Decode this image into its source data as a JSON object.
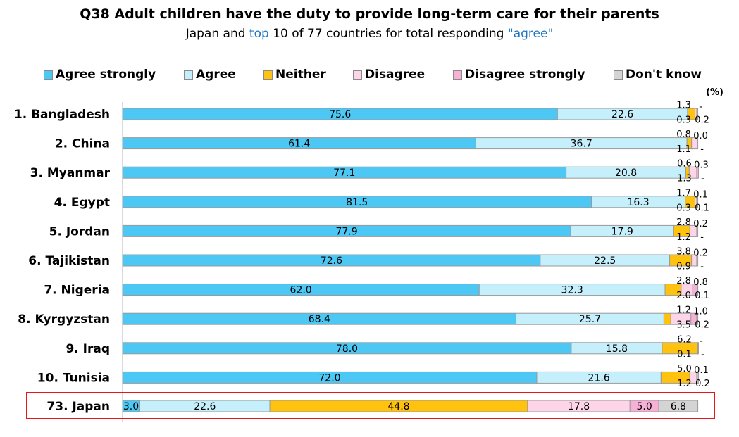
{
  "title": "Q38 Adult children have the duty to provide long-term care for their parents",
  "subtitle": {
    "prefix": "Japan and ",
    "highlight1": "top",
    "middle": " 10 of 77 countries for total responding ",
    "highlight2": "\"agree\""
  },
  "unit_label": "(%)",
  "colors": {
    "agree_strongly": "#4dc8f5",
    "agree": "#c6effc",
    "neither": "#ffc20e",
    "disagree": "#fcd5e8",
    "disagree_strongly": "#f7b0d6",
    "dont_know": "#d4d4d4",
    "highlight_box": "#e8151b",
    "bar_border": "#9a9a9a"
  },
  "chart_data": {
    "type": "bar",
    "orientation": "horizontal",
    "stacked": true,
    "xlim": [
      0,
      100
    ],
    "legend_position": "top",
    "categories": [
      "1. Bangladesh",
      "2. China",
      "3. Myanmar",
      "4. Egypt",
      "5. Jordan",
      "6. Tajikistan",
      "7. Nigeria",
      "8. Kyrgyzstan",
      "9. Iraq",
      "10. Tunisia",
      "73. Japan"
    ],
    "series": [
      {
        "name": "Agree strongly",
        "values": [
          75.6,
          61.4,
          77.1,
          81.5,
          77.9,
          72.6,
          62.0,
          68.4,
          78.0,
          72.0,
          3.0
        ],
        "labels": [
          "75.6",
          "61.4",
          "77.1",
          "81.5",
          "77.9",
          "72.6",
          "62.0",
          "68.4",
          "78.0",
          "72.0",
          "3.0"
        ]
      },
      {
        "name": "Agree",
        "values": [
          22.6,
          36.7,
          20.8,
          16.3,
          17.9,
          22.5,
          32.3,
          25.7,
          15.8,
          21.6,
          22.6
        ],
        "labels": [
          "22.6",
          "36.7",
          "20.8",
          "16.3",
          "17.9",
          "22.5",
          "32.3",
          "25.7",
          "15.8",
          "21.6",
          "22.6"
        ]
      },
      {
        "name": "Neither",
        "values": [
          1.3,
          0.8,
          0.6,
          1.7,
          2.8,
          3.8,
          2.8,
          1.2,
          6.2,
          5.0,
          44.8
        ],
        "labels": [
          "1.3",
          "0.8",
          "0.6",
          "1.7",
          "2.8",
          "3.8",
          "2.8",
          "1.2",
          "6.2",
          "5.0",
          "44.8"
        ]
      },
      {
        "name": "Disagree",
        "values": [
          0.3,
          1.1,
          1.3,
          0.3,
          1.2,
          0.9,
          2.0,
          3.5,
          0.1,
          1.2,
          17.8
        ],
        "labels": [
          "0.3",
          "1.1",
          "1.3",
          "0.3",
          "1.2",
          "0.9",
          "2.0",
          "3.5",
          "0.1",
          "1.2",
          "17.8"
        ]
      },
      {
        "name": "Disagree strongly",
        "values": [
          0,
          0.0,
          0.3,
          0.1,
          0.2,
          0.2,
          0.8,
          1.0,
          0,
          0.1,
          5.0
        ],
        "labels": [
          "-",
          "0.0",
          "0.3",
          "0.1",
          "0.2",
          "0.2",
          "0.8",
          "1.0",
          "-",
          "0.1",
          "5.0"
        ]
      },
      {
        "name": "Don't know",
        "values": [
          0.2,
          0,
          0,
          0.1,
          0,
          0,
          0.1,
          0.2,
          0,
          0.2,
          6.8
        ],
        "labels": [
          "0.2",
          "-",
          "-",
          "0.1",
          "-",
          "-",
          "0.1",
          "0.2",
          "-",
          "0.2",
          "6.8"
        ]
      }
    ],
    "highlighted_category": "73. Japan"
  }
}
